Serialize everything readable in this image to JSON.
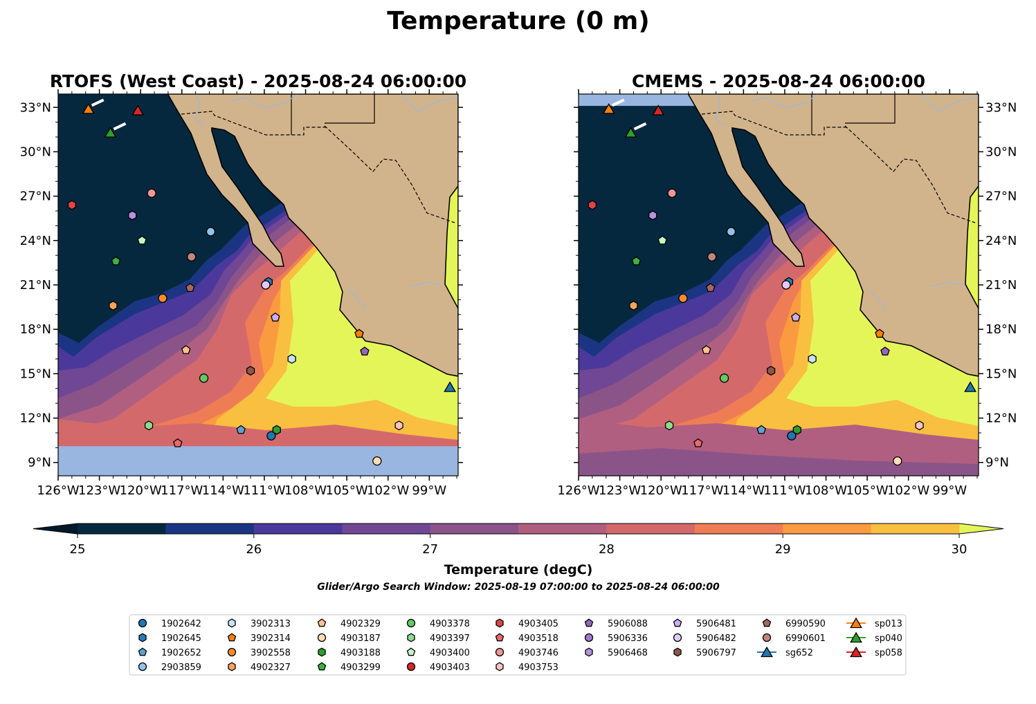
{
  "chart_data": {
    "type": "heatmap",
    "title": "Temperature (0 m)",
    "panels": [
      {
        "title": "RTOFS (West Coast) - 2025-08-24 06:00:00",
        "no_data_region": "south of 10.1°N"
      },
      {
        "title": "CMEMS - 2025-08-24 06:00:00",
        "no_data_region": "north of 33.1°N, west of 117.5°W"
      }
    ],
    "lon_range": [
      -126,
      -96.9
    ],
    "lat_range": [
      8.1,
      33.9
    ],
    "x_ticks": [
      "126°W",
      "123°W",
      "120°W",
      "117°W",
      "114°W",
      "111°W",
      "108°W",
      "105°W",
      "102°W",
      "99°W"
    ],
    "y_ticks": [
      "33°N",
      "30°N",
      "27°N",
      "24°N",
      "21°N",
      "18°N",
      "15°N",
      "12°N",
      "9°N"
    ],
    "colorbar": {
      "label": "Temperature (degC)",
      "min": 25,
      "max": 30,
      "step": 0.5,
      "tick_labels": [
        "25",
        "26",
        "27",
        "28",
        "29",
        "30"
      ],
      "extend": "both",
      "colors": [
        "#06283f",
        "#1c3583",
        "#4b389b",
        "#704795",
        "#8b5488",
        "#b05f80",
        "#d4696c",
        "#ee7d55",
        "#fb9b3f",
        "#f9bf40"
      ],
      "under_color": "#03192a",
      "over_color": "#e4f55a"
    },
    "subtitle": "Glider/Argo Search Window: 2025-08-19 07:00:00 to 2025-08-24 06:00:00",
    "colors": {
      "land": "#d2b48c",
      "no_data": "#99b6e0",
      "river": "#9ab8dd"
    },
    "platforms": [
      {
        "id": "1902642",
        "shape": "circle",
        "color": "#1f77b4",
        "lon": -110.5,
        "lat": 10.8
      },
      {
        "id": "1902645",
        "shape": "hexagon",
        "color": "#2b7bba",
        "lon": -110.7,
        "lat": 21.2
      },
      {
        "id": "1902652",
        "shape": "pentagon",
        "color": "#5fa2d0",
        "lon": -112.7,
        "lat": 11.2
      },
      {
        "id": "2903859",
        "shape": "circle",
        "color": "#91c3ea",
        "lon": -114.9,
        "lat": 24.6
      },
      {
        "id": "3902313",
        "shape": "hexagon",
        "color": "#c6e2f7",
        "lon": -109.0,
        "lat": 16.0
      },
      {
        "id": "3902314",
        "shape": "pentagon",
        "color": "#ff7f0e",
        "lon": -104.1,
        "lat": 17.7
      },
      {
        "id": "3902558",
        "shape": "circle",
        "color": "#ff8c2a",
        "lon": -118.4,
        "lat": 20.1
      },
      {
        "id": "4902327",
        "shape": "hexagon",
        "color": "#ffa25a",
        "lon": -122.0,
        "lat": 19.6
      },
      {
        "id": "4902329",
        "shape": "pentagon",
        "color": "#ffc191",
        "lon": -116.7,
        "lat": 16.6
      },
      {
        "id": "4903187",
        "shape": "circle",
        "color": "#ffdbb8",
        "lon": -102.8,
        "lat": 9.1
      },
      {
        "id": "4903188",
        "shape": "hexagon",
        "color": "#2ca02c",
        "lon": -110.1,
        "lat": 11.2
      },
      {
        "id": "4903299",
        "shape": "pentagon",
        "color": "#3cb043",
        "lon": -121.8,
        "lat": 22.6
      },
      {
        "id": "4903378",
        "shape": "circle",
        "color": "#64c864",
        "lon": -115.4,
        "lat": 14.7
      },
      {
        "id": "4903397",
        "shape": "hexagon",
        "color": "#8fdc8f",
        "lon": -119.4,
        "lat": 11.5
      },
      {
        "id": "4903400",
        "shape": "pentagon",
        "color": "#c4f7c4",
        "lon": -119.9,
        "lat": 24.0
      },
      {
        "id": "4903403",
        "shape": "circle",
        "color": "#d62728",
        "lon": null,
        "lat": null
      },
      {
        "id": "4903405",
        "shape": "hexagon",
        "color": "#df4546",
        "lon": -125.0,
        "lat": 26.4
      },
      {
        "id": "4903518",
        "shape": "pentagon",
        "color": "#e86a6b",
        "lon": -117.3,
        "lat": 10.3
      },
      {
        "id": "4903746",
        "shape": "circle",
        "color": "#f29596",
        "lon": -119.2,
        "lat": 27.2
      },
      {
        "id": "4903753",
        "shape": "hexagon",
        "color": "#fbc4c4",
        "lon": -101.2,
        "lat": 11.5
      },
      {
        "id": "5906088",
        "shape": "pentagon",
        "color": "#9467bd",
        "lon": -103.7,
        "lat": 16.5
      },
      {
        "id": "5906336",
        "shape": "circle",
        "color": "#a478cf",
        "lon": null,
        "lat": null
      },
      {
        "id": "5906468",
        "shape": "hexagon",
        "color": "#b791dc",
        "lon": -120.6,
        "lat": 25.7
      },
      {
        "id": "5906481",
        "shape": "pentagon",
        "color": "#cbaef0",
        "lon": -110.2,
        "lat": 18.8
      },
      {
        "id": "5906482",
        "shape": "circle",
        "color": "#e0ccfa",
        "lon": -110.9,
        "lat": 21.0
      },
      {
        "id": "5906797",
        "shape": "hexagon",
        "color": "#8c564b",
        "lon": -112.0,
        "lat": 15.2
      },
      {
        "id": "6990590",
        "shape": "pentagon",
        "color": "#a5695e",
        "lon": -116.4,
        "lat": 20.8
      },
      {
        "id": "6990601",
        "shape": "circle",
        "color": "#c1877b",
        "lon": -116.3,
        "lat": 22.9
      },
      {
        "id": "sg652",
        "shape": "triangle",
        "color": "#1f77b4",
        "lon": -97.5,
        "lat": 14.1,
        "glider": true
      },
      {
        "id": "sp013",
        "shape": "triangle",
        "color": "#ff7f0e",
        "lon": -123.8,
        "lat": 32.9,
        "glider": true,
        "track": true
      },
      {
        "id": "sp040",
        "shape": "triangle",
        "color": "#2ca02c",
        "lon": -122.2,
        "lat": 31.3,
        "glider": true,
        "track": true
      },
      {
        "id": "sp058",
        "shape": "triangle",
        "color": "#d62728",
        "lon": -120.2,
        "lat": 32.8,
        "glider": true
      }
    ]
  }
}
